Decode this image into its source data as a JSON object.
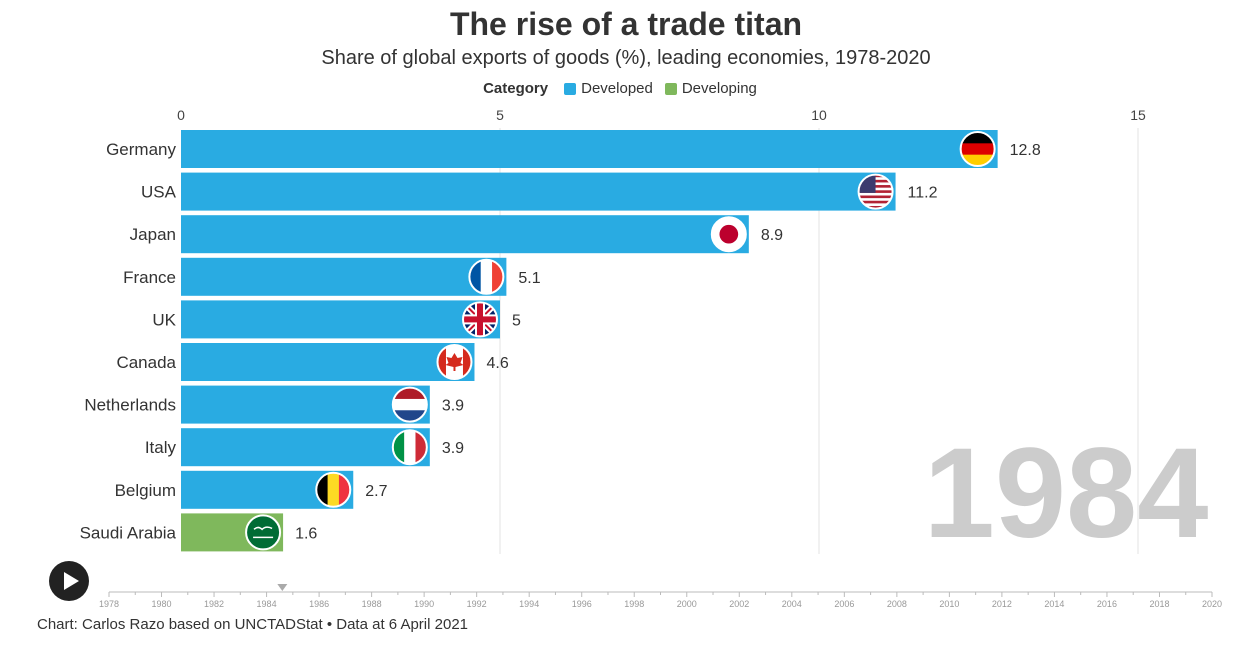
{
  "header": {
    "title": "The rise of a trade titan",
    "subtitle": "Share of global exports of goods (%), leading economies, 1978-2020"
  },
  "legend": {
    "title": "Category",
    "items": [
      {
        "label": "Developed",
        "color": "#29abe2"
      },
      {
        "label": "Developing",
        "color": "#7fb85c"
      }
    ]
  },
  "footer": {
    "source": "Chart: Carlos Razo based on UNCTADStat • Data at 6 April 2021"
  },
  "controls": {
    "play_icon": "play-icon"
  },
  "chart_data": {
    "type": "bar",
    "orientation": "horizontal",
    "current_year": "1984",
    "xlim": [
      0,
      15
    ],
    "xticks": [
      0,
      5,
      10,
      15
    ],
    "grid": true,
    "categories": [
      "Germany",
      "USA",
      "Japan",
      "France",
      "UK",
      "Canada",
      "Netherlands",
      "Italy",
      "Belgium",
      "Saudi Arabia"
    ],
    "values": [
      12.8,
      11.2,
      8.9,
      5.1,
      5,
      4.6,
      3.9,
      3.9,
      2.7,
      1.6
    ],
    "value_labels": [
      "12.8",
      "11.2",
      "8.9",
      "5.1",
      "5",
      "4.6",
      "3.9",
      "3.9",
      "2.7",
      "1.6"
    ],
    "group": [
      "Developed",
      "Developed",
      "Developed",
      "Developed",
      "Developed",
      "Developed",
      "Developed",
      "Developed",
      "Developed",
      "Developing"
    ],
    "flags": [
      "germany-flag-icon",
      "usa-flag-icon",
      "japan-flag-icon",
      "france-flag-icon",
      "uk-flag-icon",
      "canada-flag-icon",
      "netherlands-flag-icon",
      "italy-flag-icon",
      "belgium-flag-icon",
      "saudi-arabia-flag-icon"
    ],
    "timeline": {
      "start": 1978,
      "end": 2020,
      "labels": [
        "1978",
        "1980",
        "1982",
        "1984",
        "1986",
        "1988",
        "1990",
        "1992",
        "1994",
        "1996",
        "1998",
        "2000",
        "2002",
        "2004",
        "2006",
        "2008",
        "2010",
        "2012",
        "2014",
        "2016",
        "2018",
        "2020"
      ],
      "current": 1984.6
    }
  }
}
